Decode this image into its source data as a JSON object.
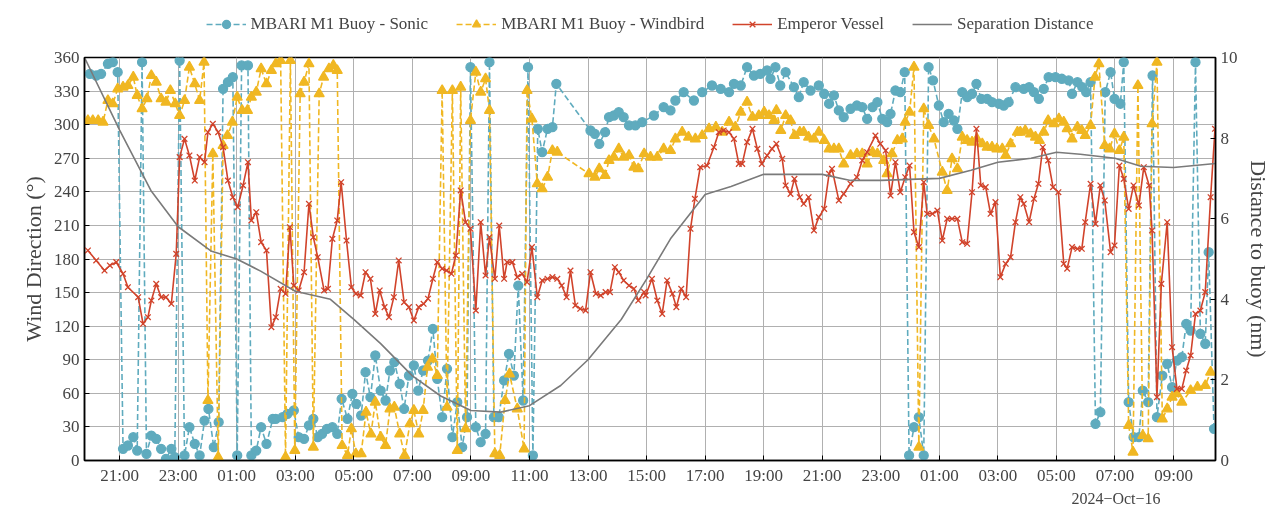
{
  "chart_data": {
    "type": "line",
    "ylabel": "Wind Direction (°)",
    "y2label": "Distance to buoy (nm)",
    "xlim": [
      "2024-10-14T19:48",
      "2024-10-16T10:26"
    ],
    "xticks": [
      {
        "value": "2024-10-14T21:00",
        "label": "21:00"
      },
      {
        "value": "2024-10-14T23:00",
        "label": "23:00"
      },
      {
        "value": "2024-10-15T01:00",
        "label": "01:00"
      },
      {
        "value": "2024-10-15T03:00",
        "label": "03:00"
      },
      {
        "value": "2024-10-15T05:00",
        "label": "05:00"
      },
      {
        "value": "2024-10-15T07:00",
        "label": "07:00"
      },
      {
        "value": "2024-10-15T09:00",
        "label": "09:00"
      },
      {
        "value": "2024-10-15T11:00",
        "label": "11:00"
      },
      {
        "value": "2024-10-15T13:00",
        "label": "13:00"
      },
      {
        "value": "2024-10-15T15:00",
        "label": "15:00"
      },
      {
        "value": "2024-10-15T17:00",
        "label": "17:00"
      },
      {
        "value": "2024-10-15T19:00",
        "label": "19:00"
      },
      {
        "value": "2024-10-15T21:00",
        "label": "21:00"
      },
      {
        "value": "2024-10-15T23:00",
        "label": "23:00"
      },
      {
        "value": "2024-10-16T01:00",
        "label": "01:00"
      },
      {
        "value": "2024-10-16T03:00",
        "label": "03:00"
      },
      {
        "value": "2024-10-16T05:00",
        "label": "05:00"
      },
      {
        "value": "2024-10-16T07:00",
        "label": "07:00"
      },
      {
        "value": "2024-10-16T09:00",
        "label": "09:00"
      }
    ],
    "ylim": [
      0,
      360
    ],
    "yticks": [
      0,
      30,
      60,
      90,
      120,
      150,
      180,
      210,
      240,
      270,
      300,
      330,
      360
    ],
    "y2lim": [
      0,
      10
    ],
    "y2ticks": [
      0,
      2,
      4,
      6,
      8,
      10
    ],
    "grid": true,
    "legend": "top",
    "annotations": [
      "2024−Oct−16"
    ],
    "series": [
      {
        "name": "MBARI M1 Buoy - Sonic",
        "color": "#5fabbe",
        "marker": "circle",
        "line_style": "dashed",
        "x": [
          "2024-10-14T19:59",
          "2024-10-14T20:12",
          "2024-10-14T20:22",
          "2024-10-14T20:36",
          "2024-10-14T20:46",
          "2024-10-14T20:56",
          "2024-10-14T21:07",
          "2024-10-14T21:17",
          "2024-10-14T21:28",
          "2024-10-14T21:36",
          "2024-10-14T21:46",
          "2024-10-14T21:55",
          "2024-10-14T22:05",
          "2024-10-14T22:15",
          "2024-10-14T22:25",
          "2024-10-14T22:35",
          "2024-10-14T22:46",
          "2024-10-14T22:53",
          "2024-10-14T23:03",
          "2024-10-14T23:13",
          "2024-10-14T23:23",
          "2024-10-14T23:34",
          "2024-10-14T23:44",
          "2024-10-14T23:54",
          "2024-10-15T00:02",
          "2024-10-15T00:13",
          "2024-10-15T00:23",
          "2024-10-15T00:32",
          "2024-10-15T00:42",
          "2024-10-15T00:52",
          "2024-10-15T01:01",
          "2024-10-15T01:10",
          "2024-10-15T01:23",
          "2024-10-15T01:30",
          "2024-10-15T01:40",
          "2024-10-15T01:50",
          "2024-10-15T02:01",
          "2024-10-15T02:14",
          "2024-10-15T02:20",
          "2024-10-15T02:34",
          "2024-10-15T02:44",
          "2024-10-15T02:57",
          "2024-10-15T03:07",
          "2024-10-15T03:18",
          "2024-10-15T03:28",
          "2024-10-15T03:37",
          "2024-10-15T03:46",
          "2024-10-15T03:55",
          "2024-10-15T04:05",
          "2024-10-15T04:16",
          "2024-10-15T04:26",
          "2024-10-15T04:35",
          "2024-10-15T04:47",
          "2024-10-15T04:57",
          "2024-10-15T05:05",
          "2024-10-15T05:15",
          "2024-10-15T05:24",
          "2024-10-15T05:34",
          "2024-10-15T05:44",
          "2024-10-15T05:55",
          "2024-10-15T06:05",
          "2024-10-15T06:14",
          "2024-10-15T06:23",
          "2024-10-15T06:34",
          "2024-10-15T06:43",
          "2024-10-15T06:53",
          "2024-10-15T07:03",
          "2024-10-15T07:12",
          "2024-10-15T07:22",
          "2024-10-15T07:32",
          "2024-10-15T07:42",
          "2024-10-15T07:51",
          "2024-10-15T08:01",
          "2024-10-15T08:11",
          "2024-10-15T08:22",
          "2024-10-15T08:32",
          "2024-10-15T08:42",
          "2024-10-15T08:52",
          "2024-10-15T08:59",
          "2024-10-15T09:10",
          "2024-10-15T09:20",
          "2024-10-15T09:30",
          "2024-10-15T09:38",
          "2024-10-15T09:47",
          "2024-10-15T09:57",
          "2024-10-15T10:08",
          "2024-10-15T10:18",
          "2024-10-15T10:28",
          "2024-10-15T10:37",
          "2024-10-15T10:47",
          "2024-10-15T10:57",
          "2024-10-15T11:07",
          "2024-10-15T11:17",
          "2024-10-15T11:26",
          "2024-10-15T11:37",
          "2024-10-15T11:47",
          "2024-10-15T11:55",
          "2024-10-15T13:05",
          "2024-10-15T13:14",
          "2024-10-15T13:23",
          "2024-10-15T13:35",
          "2024-10-15T13:43",
          "2024-10-15T13:53",
          "2024-10-15T14:03",
          "2024-10-15T14:13",
          "2024-10-15T14:24",
          "2024-10-15T14:37",
          "2024-10-15T14:51",
          "2024-10-15T15:15",
          "2024-10-15T15:35",
          "2024-10-15T15:49",
          "2024-10-15T15:59",
          "2024-10-15T16:16",
          "2024-10-15T16:37",
          "2024-10-15T16:54",
          "2024-10-15T17:14",
          "2024-10-15T17:32",
          "2024-10-15T17:49",
          "2024-10-15T17:59",
          "2024-10-15T18:13",
          "2024-10-15T18:26",
          "2024-10-15T18:40",
          "2024-10-15T18:53",
          "2024-10-15T19:07",
          "2024-10-15T19:14",
          "2024-10-15T19:24",
          "2024-10-15T19:34",
          "2024-10-15T19:45",
          "2024-10-15T20:02",
          "2024-10-15T20:12",
          "2024-10-15T20:22",
          "2024-10-15T20:36",
          "2024-10-15T20:53",
          "2024-10-15T21:04",
          "2024-10-15T21:14",
          "2024-10-15T21:24",
          "2024-10-15T21:34",
          "2024-10-15T21:44",
          "2024-10-15T21:58",
          "2024-10-15T22:11",
          "2024-10-15T22:22",
          "2024-10-15T22:32",
          "2024-10-15T22:43",
          "2024-10-15T22:53",
          "2024-10-15T23:03",
          "2024-10-15T23:13",
          "2024-10-15T23:20",
          "2024-10-15T23:30",
          "2024-10-15T23:40",
          "2024-10-15T23:49",
          "2024-10-15T23:58",
          "2024-10-16T00:08",
          "2024-10-16T00:18",
          "2024-10-16T00:28",
          "2024-10-16T00:38",
          "2024-10-16T00:47",
          "2024-10-16T00:59",
          "2024-10-16T01:09",
          "2024-10-16T01:19",
          "2024-10-16T01:30",
          "2024-10-16T01:37",
          "2024-10-16T01:47",
          "2024-10-16T01:57",
          "2024-10-16T02:07",
          "2024-10-16T02:16",
          "2024-10-16T02:26",
          "2024-10-16T02:38",
          "2024-10-16T02:48",
          "2024-10-16T03:02",
          "2024-10-16T03:12",
          "2024-10-16T03:22",
          "2024-10-16T03:36",
          "2024-10-16T03:53",
          "2024-10-16T04:04",
          "2024-10-16T04:14",
          "2024-10-16T04:24",
          "2024-10-16T04:34",
          "2024-10-16T04:44",
          "2024-10-16T04:58",
          "2024-10-16T05:11",
          "2024-10-16T05:25",
          "2024-10-16T05:32",
          "2024-10-16T05:43",
          "2024-10-16T05:53",
          "2024-10-16T06:01",
          "2024-10-16T06:10",
          "2024-10-16T06:20",
          "2024-10-16T06:30",
          "2024-10-16T06:40",
          "2024-10-16T06:51",
          "2024-10-16T06:59",
          "2024-10-16T07:11",
          "2024-10-16T07:18",
          "2024-10-16T07:28",
          "2024-10-16T07:38",
          "2024-10-16T07:49",
          "2024-10-16T07:57",
          "2024-10-16T08:08",
          "2024-10-16T08:17",
          "2024-10-16T08:26",
          "2024-10-16T08:37",
          "2024-10-16T08:47",
          "2024-10-16T08:57",
          "2024-10-16T09:07",
          "2024-10-16T09:17",
          "2024-10-16T09:26",
          "2024-10-16T09:35",
          "2024-10-16T09:45",
          "2024-10-16T09:55",
          "2024-10-16T10:05",
          "2024-10-16T10:12",
          "2024-10-16T10:23"
        ],
        "values": [
          345.4,
          343.9,
          345.4,
          354.4,
          355.8,
          346.9,
          10.4,
          13.4,
          20.8,
          8.9,
          355.8,
          6.0,
          22.3,
          19.4,
          10.4,
          1.5,
          10.4,
          3.0,
          357.3,
          4.5,
          29.8,
          14.9,
          4.5,
          35.7,
          46.1,
          11.9,
          34.2,
          332.0,
          338.0,
          342.4,
          4.5,
          352.9,
          352.9,
          4.5,
          8.9,
          29.8,
          14.9,
          37.2,
          37.2,
          38.7,
          41.7,
          44.7,
          20.8,
          19.4,
          31.3,
          37.2,
          20.8,
          23.8,
          28.3,
          29.8,
          23.8,
          55.1,
          37.2,
          59.6,
          50.6,
          40.2,
          78.9,
          56.6,
          93.8,
          62.5,
          53.6,
          80.4,
          87.8,
          68.5,
          46.1,
          75.9,
          84.9,
          62.5,
          80.4,
          89.3,
          117.6,
          73.0,
          38.7,
          81.9,
          20.8,
          52.1,
          11.9,
          38.7,
          351.4,
          29.8,
          16.4,
          23.8,
          355.8,
          38.7,
          38.7,
          71.5,
          95.3,
          75.9,
          156.3,
          53.6,
          351.4,
          4.5,
          296.3,
          275.4,
          296.3,
          297.8,
          336.5,
          294.8,
          291.8,
          282.9,
          293.3,
          306.7,
          308.2,
          311.2,
          306.7,
          299.3,
          299.3,
          302.2,
          308.2,
          315.6,
          312.7,
          321.6,
          329.0,
          321.6,
          329.0,
          335.0,
          332.0,
          329.0,
          336.5,
          335.0,
          351.4,
          343.9,
          345.4,
          348.4,
          341.0,
          351.4,
          335.0,
          346.9,
          333.5,
          324.6,
          338.0,
          330.5,
          335.0,
          327.6,
          318.7,
          326.1,
          312.7,
          306.7,
          314.2,
          317.1,
          315.6,
          305.2,
          315.6,
          320.1,
          305.2,
          302.2,
          309.7,
          330.5,
          329.0,
          346.9,
          4.5,
          29.8,
          38.7,
          4.5,
          351.4,
          339.5,
          317.1,
          302.2,
          309.7,
          303.7,
          296.3,
          329.0,
          324.6,
          327.6,
          336.5,
          323.1,
          323.1,
          320.1,
          318.7,
          317.1,
          320.1,
          333.5,
          332.0,
          333.5,
          329.0,
          323.1,
          332.0,
          342.4,
          342.4,
          341.0,
          339.5,
          327.6,
          338.0,
          333.5,
          329.0,
          338.0,
          32.8,
          43.2,
          329.0,
          346.9,
          323.1,
          318.7,
          355.8,
          52.1,
          20.8,
          20.8,
          62.5,
          52.1,
          343.9,
          38.7,
          75.9,
          86.4,
          65.5,
          89.3,
          92.3,
          122.1,
          116.1,
          355.8,
          113.2,
          104.3,
          186.1,
          28.3
        ]
      },
      {
        "name": "MBARI M1 Buoy - Windbird",
        "color": "#f0b722",
        "marker": "triangle",
        "line_style": "dashed",
        "x": [
          "2024-10-14T19:55",
          "2024-10-14T20:05",
          "2024-10-14T20:16",
          "2024-10-14T20:26",
          "2024-10-14T20:36",
          "2024-10-14T20:46",
          "2024-10-14T20:56",
          "2024-10-14T21:07",
          "2024-10-14T21:17",
          "2024-10-14T21:28",
          "2024-10-14T21:36",
          "2024-10-14T21:46",
          "2024-10-14T21:56",
          "2024-10-14T22:05",
          "2024-10-14T22:15",
          "2024-10-14T22:25",
          "2024-10-14T22:35",
          "2024-10-14T22:44",
          "2024-10-14T22:54",
          "2024-10-14T23:03",
          "2024-10-14T23:13",
          "2024-10-14T23:23",
          "2024-10-14T23:34",
          "2024-10-14T23:44",
          "2024-10-14T23:53",
          "2024-10-15T00:01",
          "2024-10-15T00:11",
          "2024-10-15T00:22",
          "2024-10-15T00:32",
          "2024-10-15T00:41",
          "2024-10-15T00:51",
          "2024-10-15T01:01",
          "2024-10-15T01:11",
          "2024-10-15T01:22",
          "2024-10-15T01:30",
          "2024-10-15T01:40",
          "2024-10-15T01:50",
          "2024-10-15T02:01",
          "2024-10-15T02:11",
          "2024-10-15T02:20",
          "2024-10-15T02:30",
          "2024-10-15T02:40",
          "2024-10-15T02:50",
          "2024-10-15T02:59",
          "2024-10-15T03:10",
          "2024-10-15T03:18",
          "2024-10-15T03:28",
          "2024-10-15T03:37",
          "2024-10-15T03:49",
          "2024-10-15T03:58",
          "2024-10-15T04:09",
          "2024-10-15T04:18",
          "2024-10-15T04:26",
          "2024-10-15T04:36",
          "2024-10-15T04:47",
          "2024-10-15T04:55",
          "2024-10-15T05:04",
          "2024-10-15T05:15",
          "2024-10-15T05:25",
          "2024-10-15T05:35",
          "2024-10-15T05:44",
          "2024-10-15T05:55",
          "2024-10-15T06:05",
          "2024-10-15T06:14",
          "2024-10-15T06:23",
          "2024-10-15T06:34",
          "2024-10-15T06:44",
          "2024-10-15T06:55",
          "2024-10-15T07:03",
          "2024-10-15T07:13",
          "2024-10-15T07:22",
          "2024-10-15T07:31",
          "2024-10-15T07:41",
          "2024-10-15T07:51",
          "2024-10-15T08:01",
          "2024-10-15T08:11",
          "2024-10-15T08:22",
          "2024-10-15T08:32",
          "2024-10-15T08:39",
          "2024-10-15T08:49",
          "2024-10-15T08:59",
          "2024-10-15T09:10",
          "2024-10-15T09:20",
          "2024-10-15T09:30",
          "2024-10-15T09:38",
          "2024-10-15T09:49",
          "2024-10-15T09:59",
          "2024-10-15T10:10",
          "2024-10-15T10:19",
          "2024-10-15T10:35",
          "2024-10-15T10:49",
          "2024-10-15T10:55",
          "2024-10-15T11:05",
          "2024-10-15T11:16",
          "2024-10-15T11:26",
          "2024-10-15T11:37",
          "2024-10-15T11:47",
          "2024-10-15T11:57",
          "2024-10-15T13:02",
          "2024-10-15T13:14",
          "2024-10-15T13:23",
          "2024-10-15T13:35",
          "2024-10-15T13:43",
          "2024-10-15T13:53",
          "2024-10-15T14:03",
          "2024-10-15T14:13",
          "2024-10-15T14:24",
          "2024-10-15T14:34",
          "2024-10-15T14:43",
          "2024-10-15T14:55",
          "2024-10-15T15:08",
          "2024-10-15T15:22",
          "2024-10-15T15:35",
          "2024-10-15T15:49",
          "2024-10-15T15:59",
          "2024-10-15T16:13",
          "2024-10-15T16:26",
          "2024-10-15T16:40",
          "2024-10-15T16:54",
          "2024-10-15T17:08",
          "2024-10-15T17:22",
          "2024-10-15T17:35",
          "2024-10-15T17:49",
          "2024-10-15T18:02",
          "2024-10-15T18:13",
          "2024-10-15T18:26",
          "2024-10-15T18:37",
          "2024-10-15T18:50",
          "2024-10-15T19:01",
          "2024-10-15T19:11",
          "2024-10-15T19:21",
          "2024-10-15T19:26",
          "2024-10-15T19:35",
          "2024-10-15T19:45",
          "2024-10-15T19:55",
          "2024-10-15T20:03",
          "2024-10-15T20:14",
          "2024-10-15T20:22",
          "2024-10-15T20:32",
          "2024-10-15T20:43",
          "2024-10-15T20:53",
          "2024-10-15T21:04",
          "2024-10-15T21:14",
          "2024-10-15T21:24",
          "2024-10-15T21:34",
          "2024-10-15T21:44",
          "2024-10-15T21:58",
          "2024-10-15T22:11",
          "2024-10-15T22:22",
          "2024-10-15T22:32",
          "2024-10-15T22:43",
          "2024-10-15T22:53",
          "2024-10-15T23:06",
          "2024-10-15T23:13",
          "2024-10-15T23:23",
          "2024-10-15T23:34",
          "2024-10-15T23:44",
          "2024-10-15T23:50",
          "2024-10-15T23:59",
          "2024-10-16T00:08",
          "2024-10-16T00:18",
          "2024-10-16T00:28",
          "2024-10-16T00:38",
          "2024-10-16T00:49",
          "2024-10-16T01:06",
          "2024-10-16T01:16",
          "2024-10-16T01:26",
          "2024-10-16T01:37",
          "2024-10-16T01:47",
          "2024-10-16T01:57",
          "2024-10-16T02:07",
          "2024-10-16T02:17",
          "2024-10-16T02:28",
          "2024-10-16T02:38",
          "2024-10-16T02:48",
          "2024-10-16T02:58",
          "2024-10-16T03:09",
          "2024-10-16T03:16",
          "2024-10-16T03:26",
          "2024-10-16T03:40",
          "2024-10-16T03:46",
          "2024-10-16T03:56",
          "2024-10-16T04:07",
          "2024-10-16T04:17",
          "2024-10-16T04:25",
          "2024-10-16T04:34",
          "2024-10-16T04:43",
          "2024-10-16T04:55",
          "2024-10-16T05:05",
          "2024-10-16T05:15",
          "2024-10-16T05:22",
          "2024-10-16T05:32",
          "2024-10-16T05:43",
          "2024-10-16T05:52",
          "2024-10-16T05:59",
          "2024-10-16T06:10",
          "2024-10-16T06:19",
          "2024-10-16T06:27",
          "2024-10-16T06:39",
          "2024-10-16T06:49",
          "2024-10-16T06:59",
          "2024-10-16T07:09",
          "2024-10-16T07:18",
          "2024-10-16T07:28",
          "2024-10-16T07:37",
          "2024-10-16T07:47",
          "2024-10-16T07:57",
          "2024-10-16T08:08",
          "2024-10-16T08:16",
          "2024-10-16T08:26",
          "2024-10-16T08:37",
          "2024-10-16T08:47",
          "2024-10-16T08:57",
          "2024-10-16T09:07",
          "2024-10-16T09:17",
          "2024-10-16T09:35",
          "2024-10-16T09:49",
          "2024-10-16T10:05",
          "2024-10-16T10:16"
        ],
        "values": [
          303.7,
          303.7,
          303.7,
          302.2,
          321.6,
          318.7,
          332.0,
          333.5,
          335.0,
          342.4,
          326.1,
          314.2,
          323.1,
          343.9,
          338.0,
          323.1,
          320.1,
          330.5,
          318.7,
          308.2,
          321.6,
          351.4,
          336.5,
          321.6,
          355.8,
          53.6,
          274.0,
          3.0,
          281.4,
          290.3,
          302.2,
          324.6,
          312.7,
          312.7,
          324.6,
          329.0,
          349.9,
          336.5,
          348.4,
          354.4,
          357.3,
          3.0,
          357.3,
          8.9,
          327.6,
          338.0,
          354.4,
          11.9,
          327.6,
          342.4,
          349.9,
          352.9,
          348.4,
          13.4,
          4.5,
          28.3,
          6.0,
          6.0,
          43.2,
          23.8,
          52.1,
          20.8,
          13.4,
          46.1,
          47.6,
          23.8,
          4.5,
          32.8,
          44.7,
          23.8,
          44.7,
          83.4,
          90.8,
          75.9,
          330.5,
          47.6,
          330.5,
          8.9,
          333.5,
          28.3,
          303.7,
          346.9,
          329.0,
          341.0,
          312.7,
          6.0,
          4.5,
          53.6,
          77.4,
          46.1,
          10.4,
          330.5,
          305.2,
          247.2,
          242.7,
          253.1,
          276.9,
          275.4,
          256.1,
          253.1,
          260.6,
          254.6,
          268.0,
          271.0,
          278.4,
          271.0,
          272.5,
          262.0,
          260.6,
          274.0,
          271.0,
          271.0,
          278.4,
          276.9,
          287.3,
          293.3,
          288.8,
          287.3,
          290.3,
          296.3,
          297.8,
          293.3,
          302.2,
          297.8,
          311.2,
          320.1,
          306.7,
          308.2,
          311.2,
          308.2,
          303.7,
          312.7,
          294.8,
          308.2,
          303.7,
          290.3,
          293.3,
          293.3,
          288.8,
          287.3,
          293.3,
          285.9,
          278.4,
          278.4,
          278.4,
          265.0,
          272.5,
          274.0,
          274.0,
          265.0,
          275.4,
          274.0,
          268.0,
          256.1,
          274.0,
          285.9,
          287.3,
          302.2,
          311.2,
          351.4,
          11.9,
          314.2,
          299.3,
          287.3,
          257.6,
          241.2,
          269.5,
          260.6,
          288.8,
          285.9,
          284.4,
          287.3,
          282.9,
          279.9,
          279.9,
          278.4,
          278.4,
          272.5,
          282.9,
          293.3,
          293.3,
          294.8,
          291.8,
          288.8,
          285.9,
          293.3,
          303.7,
          300.8,
          305.2,
          302.2,
          296.3,
          287.3,
          297.8,
          294.8,
          290.3,
          299.3,
          342.4,
          354.4,
          281.4,
          278.4,
          291.8,
          276.9,
          288.8,
          31.3,
          7.4,
          335.0,
          22.3,
          19.4,
          300.8,
          355.8,
          37.2,
          46.1,
          56.6,
          59.6,
          52.1,
          62.5,
          65.5,
          67.0,
          78.9
        ]
      },
      {
        "name": "Emperor Vessel",
        "color": "#d1432b",
        "marker": "cross",
        "line_style": "solid",
        "x": [
          "2024-10-14T19:55",
          "2024-10-14T20:12",
          "2024-10-14T20:29",
          "2024-10-14T20:40",
          "2024-10-14T20:53",
          "2024-10-14T21:07",
          "2024-10-14T21:17",
          "2024-10-14T21:38",
          "2024-10-14T21:48",
          "2024-10-14T21:58",
          "2024-10-14T22:05",
          "2024-10-14T22:15",
          "2024-10-14T22:25",
          "2024-10-14T22:35",
          "2024-10-14T22:46",
          "2024-10-14T22:56",
          "2024-10-14T23:03",
          "2024-10-14T23:13",
          "2024-10-14T23:23",
          "2024-10-14T23:34",
          "2024-10-14T23:44",
          "2024-10-14T23:54",
          "2024-10-15T00:01",
          "2024-10-15T00:11",
          "2024-10-15T00:22",
          "2024-10-15T00:32",
          "2024-10-15T00:42",
          "2024-10-15T00:52",
          "2024-10-15T01:02",
          "2024-10-15T01:13",
          "2024-10-15T01:23",
          "2024-10-15T01:30",
          "2024-10-15T01:40",
          "2024-10-15T01:50",
          "2024-10-15T02:01",
          "2024-10-15T02:11",
          "2024-10-15T02:20",
          "2024-10-15T02:30",
          "2024-10-15T02:40",
          "2024-10-15T02:49",
          "2024-10-15T02:57",
          "2024-10-15T03:07",
          "2024-10-15T03:18",
          "2024-10-15T03:28",
          "2024-10-15T03:37",
          "2024-10-15T03:46",
          "2024-10-15T03:59",
          "2024-10-15T04:07",
          "2024-10-15T04:16",
          "2024-10-15T04:26",
          "2024-10-15T04:34",
          "2024-10-15T04:45",
          "2024-10-15T04:55",
          "2024-10-15T05:04",
          "2024-10-15T05:14",
          "2024-10-15T05:24",
          "2024-10-15T05:34",
          "2024-10-15T05:44",
          "2024-10-15T05:53",
          "2024-10-15T06:03",
          "2024-10-15T06:12",
          "2024-10-15T06:22",
          "2024-10-15T06:32",
          "2024-10-15T06:43",
          "2024-10-15T06:53",
          "2024-10-15T07:03",
          "2024-10-15T07:13",
          "2024-10-15T07:23",
          "2024-10-15T07:32",
          "2024-10-15T07:42",
          "2024-10-15T07:51",
          "2024-10-15T08:01",
          "2024-10-15T08:10",
          "2024-10-15T08:20",
          "2024-10-15T08:29",
          "2024-10-15T08:39",
          "2024-10-15T08:49",
          "2024-10-15T08:59",
          "2024-10-15T09:10",
          "2024-10-15T09:20",
          "2024-10-15T09:30",
          "2024-10-15T09:38",
          "2024-10-15T09:49",
          "2024-10-15T09:58",
          "2024-10-15T10:08",
          "2024-10-15T10:14",
          "2024-10-15T10:25",
          "2024-10-15T10:35",
          "2024-10-15T10:45",
          "2024-10-15T10:55",
          "2024-10-15T11:05",
          "2024-10-15T11:16",
          "2024-10-15T11:26",
          "2024-10-15T11:37",
          "2024-10-15T11:47",
          "2024-10-15T11:57",
          "2024-10-15T12:06",
          "2024-10-15T12:16",
          "2024-10-15T12:24",
          "2024-10-15T12:34",
          "2024-10-15T12:44",
          "2024-10-15T12:55",
          "2024-10-15T13:05",
          "2024-10-15T13:16",
          "2024-10-15T13:26",
          "2024-10-15T13:36",
          "2024-10-15T13:45",
          "2024-10-15T13:55",
          "2024-10-15T14:03",
          "2024-10-15T14:13",
          "2024-10-15T14:24",
          "2024-10-15T14:34",
          "2024-10-15T14:43",
          "2024-10-15T14:55",
          "2024-10-15T14:58",
          "2024-10-15T15:11",
          "2024-10-15T15:22",
          "2024-10-15T15:32",
          "2024-10-15T15:42",
          "2024-10-15T15:53",
          "2024-10-15T16:01",
          "2024-10-15T16:11",
          "2024-10-15T16:21",
          "2024-10-15T16:30",
          "2024-10-15T16:39",
          "2024-10-15T16:50",
          "2024-10-15T17:04",
          "2024-10-15T17:18",
          "2024-10-15T17:28",
          "2024-10-15T17:38",
          "2024-10-15T17:49",
          "2024-10-15T17:59",
          "2024-10-15T18:09",
          "2024-10-15T18:16",
          "2024-10-15T18:26",
          "2024-10-15T18:37",
          "2024-10-15T18:47",
          "2024-10-15T18:56",
          "2024-10-15T19:07",
          "2024-10-15T19:17",
          "2024-10-15T19:26",
          "2024-10-15T19:38",
          "2024-10-15T19:45",
          "2024-10-15T19:55",
          "2024-10-15T20:03",
          "2024-10-15T20:14",
          "2024-10-15T20:22",
          "2024-10-15T20:32",
          "2024-10-15T20:43",
          "2024-10-15T20:53",
          "2024-10-15T21:04",
          "2024-10-15T21:14",
          "2024-10-15T21:20",
          "2024-10-15T21:34",
          "2024-10-15T21:44",
          "2024-10-15T21:58",
          "2024-10-15T22:11",
          "2024-10-15T22:22",
          "2024-10-15T22:32",
          "2024-10-15T22:49",
          "2024-10-15T22:59",
          "2024-10-15T23:10",
          "2024-10-15T23:20",
          "2024-10-15T23:30",
          "2024-10-15T23:40",
          "2024-10-15T23:50",
          "2024-10-15T23:59",
          "2024-10-16T00:08",
          "2024-10-16T00:18",
          "2024-10-16T00:28",
          "2024-10-16T00:35",
          "2024-10-16T00:46",
          "2024-10-16T00:56",
          "2024-10-16T01:06",
          "2024-10-16T01:16",
          "2024-10-16T01:26",
          "2024-10-16T01:37",
          "2024-10-16T01:47",
          "2024-10-16T01:57",
          "2024-10-16T02:07",
          "2024-10-16T02:16",
          "2024-10-16T02:25",
          "2024-10-16T02:35",
          "2024-10-16T02:45",
          "2024-10-16T02:55",
          "2024-10-16T03:05",
          "2024-10-16T03:16",
          "2024-10-16T03:26",
          "2024-10-16T03:36",
          "2024-10-16T03:46",
          "2024-10-16T03:53",
          "2024-10-16T04:04",
          "2024-10-16T04:14",
          "2024-10-16T04:23",
          "2024-10-16T04:32",
          "2024-10-16T04:43",
          "2024-10-16T04:53",
          "2024-10-16T05:04",
          "2024-10-16T05:15",
          "2024-10-16T05:22",
          "2024-10-16T05:32",
          "2024-10-16T05:43",
          "2024-10-16T05:52",
          "2024-10-16T05:59",
          "2024-10-16T06:10",
          "2024-10-16T06:20",
          "2024-10-16T06:30",
          "2024-10-16T06:39",
          "2024-10-16T06:51",
          "2024-10-16T06:59",
          "2024-10-16T07:09",
          "2024-10-16T07:18",
          "2024-10-16T07:28",
          "2024-10-16T07:38",
          "2024-10-16T07:49",
          "2024-10-16T07:59",
          "2024-10-16T08:10",
          "2024-10-16T08:16",
          "2024-10-16T08:26",
          "2024-10-16T08:35",
          "2024-10-16T08:47",
          "2024-10-16T08:57",
          "2024-10-16T09:07",
          "2024-10-16T09:17",
          "2024-10-16T09:26",
          "2024-10-16T09:35",
          "2024-10-16T09:45",
          "2024-10-16T09:55",
          "2024-10-16T10:05",
          "2024-10-16T10:16",
          "2024-10-16T10:25"
        ],
        "values": [
          187.6,
          178.7,
          169.7,
          174.2,
          177.2,
          166.8,
          154.8,
          145.9,
          122.1,
          128.0,
          142.9,
          157.8,
          145.9,
          145.9,
          140.0,
          184.6,
          271.0,
          287.3,
          272.5,
          250.1,
          271.0,
          266.5,
          293.3,
          300.8,
          293.3,
          279.9,
          250.1,
          235.2,
          226.3,
          245.7,
          266.5,
          214.4,
          221.8,
          195.0,
          187.6,
          119.1,
          128.0,
          153.4,
          148.9,
          208.4,
          156.3,
          151.9,
          168.2,
          229.3,
          199.5,
          181.6,
          151.9,
          153.4,
          198.0,
          214.4,
          248.6,
          196.5,
          154.8,
          148.9,
          147.4,
          168.2,
          162.3,
          131.0,
          151.9,
          137.0,
          128.0,
          145.9,
          178.7,
          141.4,
          137.0,
          125.1,
          137.0,
          140.0,
          144.5,
          162.3,
          177.2,
          171.3,
          169.7,
          166.8,
          183.1,
          241.2,
          212.9,
          207.0,
          134.0,
          212.9,
          165.3,
          199.5,
          162.3,
          209.9,
          162.3,
          177.2,
          177.2,
          163.8,
          166.8,
          159.3,
          190.6,
          145.9,
          160.8,
          162.3,
          163.8,
          162.3,
          156.3,
          145.9,
          169.7,
          138.5,
          135.5,
          134.0,
          168.2,
          148.9,
          147.4,
          150.4,
          150.4,
          172.7,
          168.2,
          160.8,
          156.3,
          153.4,
          142.9,
          150.4,
          147.4,
          162.3,
          142.9,
          131.0,
          160.8,
          148.9,
          137.0,
          153.4,
          145.9,
          207.0,
          233.8,
          262.0,
          263.5,
          279.9,
          293.3,
          294.8,
          293.3,
          287.3,
          265.0,
          265.0,
          284.4,
          296.3,
          278.4,
          265.0,
          272.5,
          278.4,
          282.9,
          269.5,
          245.7,
          238.2,
          251.6,
          235.2,
          229.3,
          235.2,
          205.5,
          217.4,
          224.8,
          256.1,
          260.6,
          232.3,
          238.2,
          247.2,
          253.1,
          268.0,
          275.4,
          290.3,
          282.9,
          276.9,
          236.7,
          266.5,
          239.7,
          253.1,
          263.5,
          204.0,
          190.6,
          248.6,
          220.4,
          220.4,
          223.3,
          196.5,
          215.9,
          215.9,
          215.9,
          195.0,
          193.6,
          239.7,
          296.3,
          245.7,
          244.2,
          220.4,
          230.8,
          163.8,
          175.7,
          181.6,
          212.9,
          235.2,
          229.3,
          212.9,
          233.8,
          247.2,
          279.9,
          268.0,
          244.2,
          239.7,
          175.7,
          171.3,
          190.6,
          189.1,
          189.1,
          212.9,
          247.2,
          211.4,
          245.7,
          232.3,
          186.1,
          192.1,
          263.5,
          251.6,
          224.8,
          245.7,
          227.8,
          262.0,
          245.7,
          205.5,
          56.6,
          157.8,
          212.9,
          101.2,
          64.0,
          64.0,
          80.4,
          93.8,
          131.0,
          134.0,
          150.4,
          235.2,
          296.3
        ]
      },
      {
        "name": "Separation Distance",
        "color": "#7a7a7a",
        "marker": "none",
        "line_style": "solid",
        "axis": "y2",
        "x": [
          "2024-10-14T19:48",
          "2024-10-14T21:00",
          "2024-10-14T22:04",
          "2024-10-14T23:00",
          "2024-10-15T00:07",
          "2024-10-15T01:00",
          "2024-10-15T01:49",
          "2024-10-15T03:00",
          "2024-10-15T04:12",
          "2024-10-15T05:00",
          "2024-10-15T05:55",
          "2024-10-15T07:00",
          "2024-10-15T07:58",
          "2024-10-15T09:00",
          "2024-10-15T10:01",
          "2024-10-15T11:00",
          "2024-10-15T12:04",
          "2024-10-15T13:00",
          "2024-10-15T14:08",
          "2024-10-15T15:00",
          "2024-10-15T15:49",
          "2024-10-15T17:00",
          "2024-10-15T17:53",
          "2024-10-15T19:00",
          "2024-10-15T20:16",
          "2024-10-15T21:00",
          "2024-10-15T21:58",
          "2024-10-15T23:00",
          "2024-10-16T01:00",
          "2024-10-16T02:05",
          "2024-10-16T03:00",
          "2024-10-16T04:08",
          "2024-10-16T05:00",
          "2024-10-16T05:49",
          "2024-10-16T07:00",
          "2024-10-16T07:53",
          "2024-10-16T09:00",
          "2024-10-16T10:26"
        ],
        "values": [
          10.0,
          8.2,
          6.7,
          5.8,
          5.2,
          5.0,
          4.7,
          4.2,
          4.0,
          3.5,
          2.9,
          2.1,
          1.6,
          1.24,
          1.2,
          1.36,
          1.86,
          2.5,
          3.5,
          4.5,
          5.5,
          6.6,
          6.8,
          7.1,
          7.1,
          7.1,
          6.95,
          6.95,
          7.0,
          7.2,
          7.4,
          7.5,
          7.65,
          7.6,
          7.5,
          7.3,
          7.27,
          7.37
        ]
      }
    ]
  }
}
